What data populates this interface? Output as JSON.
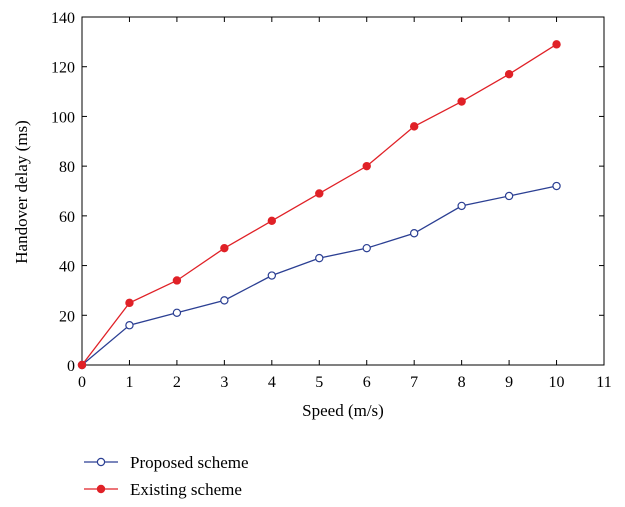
{
  "chart_data": {
    "type": "line",
    "xlabel": "Speed (m/s)",
    "ylabel": "Handover delay (ms)",
    "xlim": [
      0,
      11
    ],
    "ylim": [
      0,
      140
    ],
    "x_ticks": [
      0,
      1,
      2,
      3,
      4,
      5,
      6,
      7,
      8,
      9,
      10,
      11
    ],
    "y_ticks": [
      0,
      20,
      40,
      60,
      80,
      100,
      120,
      140
    ],
    "grid": false,
    "legend_position": "bottom-left, below the plot",
    "series": [
      {
        "name": "Proposed scheme",
        "marker": "open-circle",
        "color": "#2b3f93",
        "x": [
          0,
          1,
          2,
          3,
          4,
          5,
          6,
          7,
          8,
          9,
          10
        ],
        "y": [
          0,
          16,
          21,
          26,
          36,
          43,
          47,
          53,
          64,
          68,
          72
        ]
      },
      {
        "name": "Existing scheme",
        "marker": "filled-circle",
        "color": "#e02127",
        "x": [
          0,
          1,
          2,
          3,
          4,
          5,
          6,
          7,
          8,
          9,
          10
        ],
        "y": [
          0,
          25,
          34,
          47,
          58,
          69,
          80,
          96,
          106,
          117,
          129
        ]
      }
    ]
  }
}
